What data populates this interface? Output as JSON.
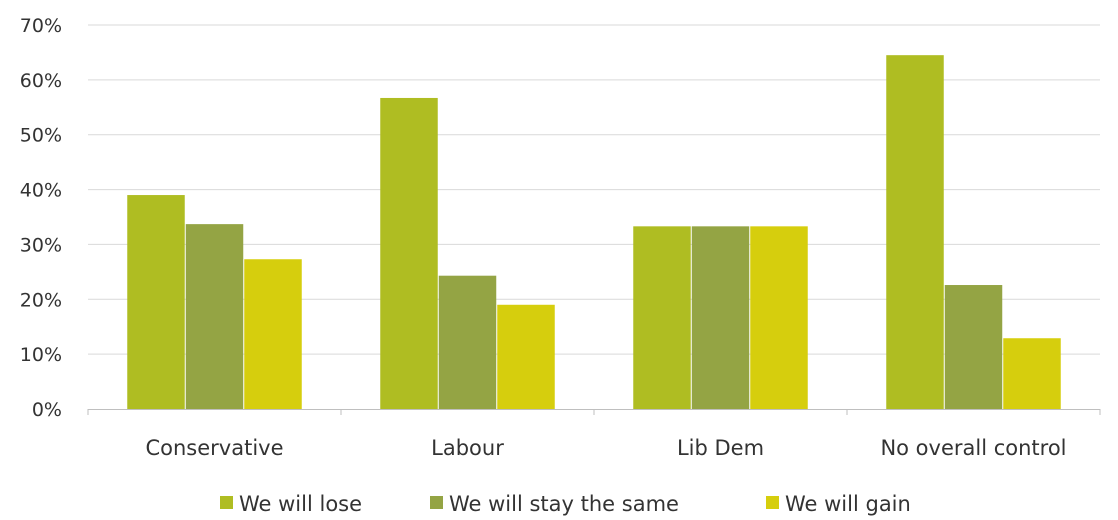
{
  "chart_data": {
    "type": "bar",
    "categories": [
      "Conservative",
      "Labour",
      "Lib Dem",
      "No overall control"
    ],
    "series": [
      {
        "name": "We will lose",
        "values": [
          39,
          56.7,
          33.3,
          64.5
        ],
        "color": "#afbd22"
      },
      {
        "name": "We will stay the same",
        "values": [
          33.7,
          24.3,
          33.3,
          22.6
        ],
        "color": "#94a444"
      },
      {
        "name": "We will gain",
        "values": [
          27.3,
          19,
          33.3,
          12.9
        ],
        "color": "#d6ce0d"
      }
    ],
    "y_ticks": [
      "0%",
      "10%",
      "20%",
      "30%",
      "40%",
      "50%",
      "60%",
      "70%"
    ],
    "ylim": [
      0,
      70
    ],
    "grid": true,
    "legend_position": "bottom",
    "gridline_color": "#d9d9d9",
    "axis_color": "#bfbfbf"
  }
}
